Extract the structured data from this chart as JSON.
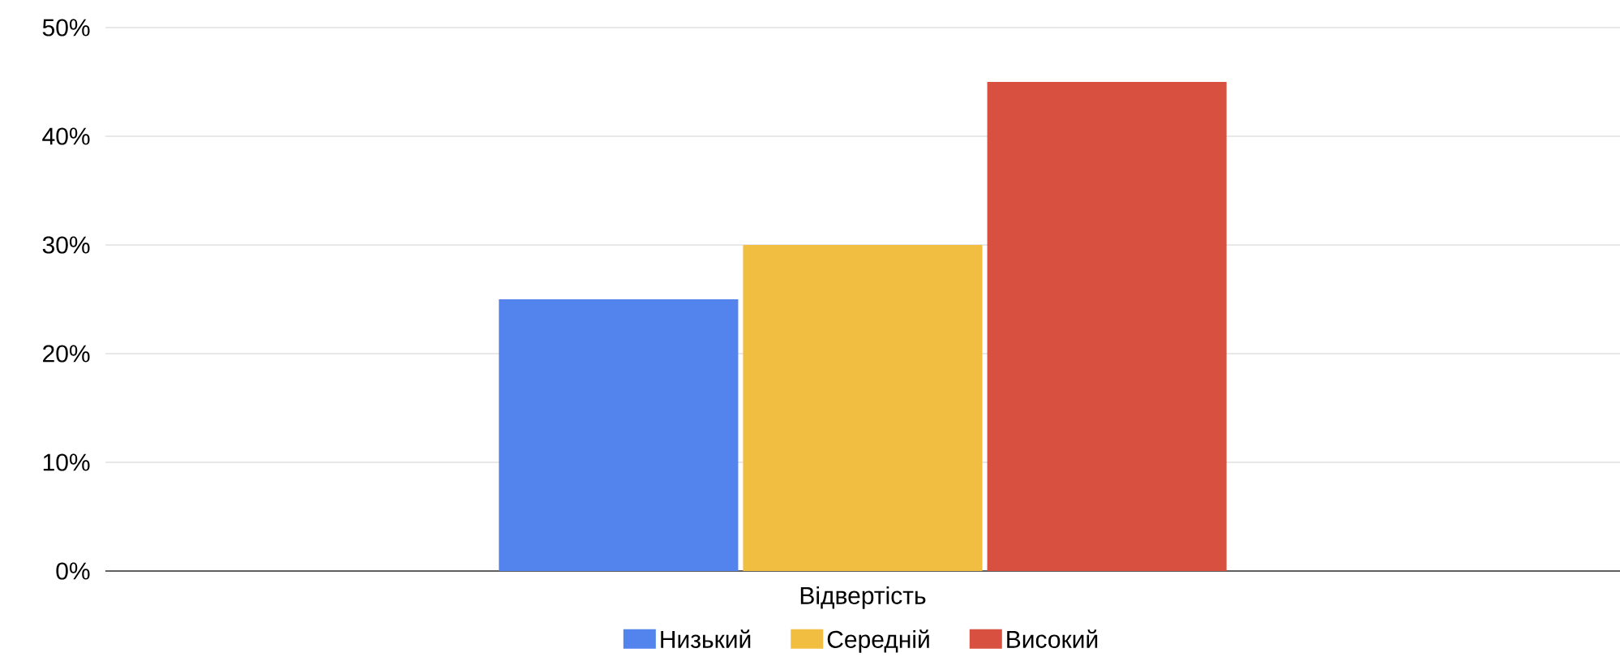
{
  "chart_data": {
    "type": "bar",
    "categories": [
      "Відвертість"
    ],
    "series": [
      {
        "name": "Низький",
        "color": "#5383ec",
        "values": [
          25
        ]
      },
      {
        "name": "Середній",
        "color": "#f1be42",
        "values": [
          30
        ]
      },
      {
        "name": "Високий",
        "color": "#d85140",
        "values": [
          45
        ]
      }
    ],
    "ylim": [
      0,
      50
    ],
    "yticks": [
      {
        "value": 0,
        "label": "0%"
      },
      {
        "value": 10,
        "label": "10%"
      },
      {
        "value": 20,
        "label": "20%"
      },
      {
        "value": 30,
        "label": "30%"
      },
      {
        "value": 40,
        "label": "40%"
      },
      {
        "value": 50,
        "label": "50%"
      }
    ],
    "grid": "y",
    "legend": "bottom"
  }
}
